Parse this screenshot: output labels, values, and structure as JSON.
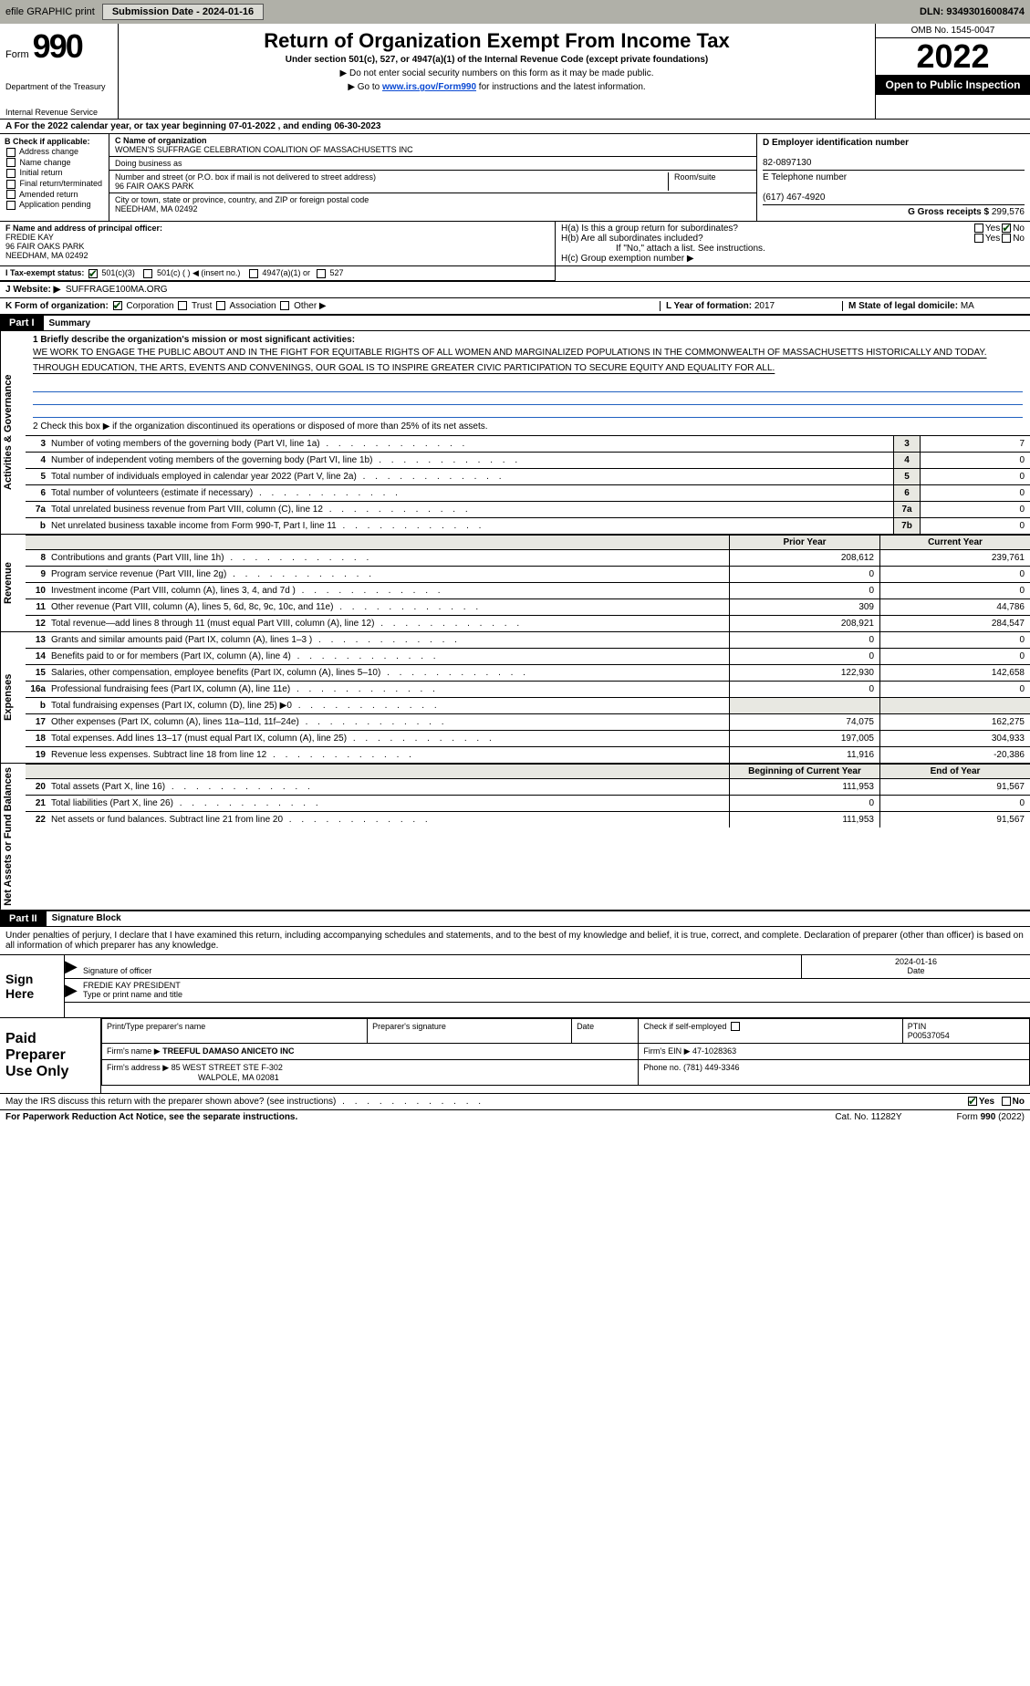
{
  "topbar": {
    "efile": "efile GRAPHIC print",
    "submission": "Submission Date - 2024-01-16",
    "dln": "DLN: 93493016008474"
  },
  "header": {
    "form_word": "Form",
    "form_num": "990",
    "dept": "Department of the Treasury",
    "irs": "Internal Revenue Service",
    "title": "Return of Organization Exempt From Income Tax",
    "sub": "Under section 501(c), 527, or 4947(a)(1) of the Internal Revenue Code (except private foundations)",
    "note1": "▶ Do not enter social security numbers on this form as it may be made public.",
    "note2a": "▶ Go to ",
    "note2link": "www.irs.gov/Form990",
    "note2b": " for instructions and the latest information.",
    "omb": "OMB No. 1545-0047",
    "year": "2022",
    "public": "Open to Public Inspection"
  },
  "svc": "A For the 2022 calendar year, or tax year beginning 07-01-2022    , and ending 06-30-2023",
  "B": {
    "title": "B Check if applicable:",
    "items": [
      "Address change",
      "Name change",
      "Initial return",
      "Final return/terminated",
      "Amended return",
      "Application pending"
    ]
  },
  "C": {
    "name_lab": "C Name of organization",
    "name": "WOMEN'S SUFFRAGE CELEBRATION COALITION OF MASSACHUSETTS INC",
    "dba_lab": "Doing business as",
    "street_lab": "Number and street (or P.O. box if mail is not delivered to street address)",
    "room_lab": "Room/suite",
    "street": "96 FAIR OAKS PARK",
    "city_lab": "City or town, state or province, country, and ZIP or foreign postal code",
    "city": "NEEDHAM, MA  02492"
  },
  "D": {
    "lab": "D Employer identification number",
    "val": "82-0897130",
    "E_lab": "E Telephone number",
    "E_val": "(617) 467-4920",
    "G_lab": "G Gross receipts $",
    "G_val": "299,576"
  },
  "officer": {
    "F_lab": "F Name and address of principal officer:",
    "name": "FREDIE KAY",
    "street": "96 FAIR OAKS PARK",
    "city": "NEEDHAM, MA  02492",
    "Ha": "H(a)  Is this a group return for subordinates?",
    "Hb": "H(b)  Are all subordinates included?",
    "Hnote": "If \"No,\" attach a list. See instructions.",
    "Hc": "H(c)  Group exemption number ▶",
    "yes": "Yes",
    "no": "No"
  },
  "I": {
    "lab": "I    Tax-exempt status:",
    "a": "501(c)(3)",
    "b": "501(c) (  ) ◀ (insert no.)",
    "c": "4947(a)(1) or",
    "d": "527"
  },
  "J": {
    "lab": "J    Website: ▶",
    "val": "SUFFRAGE100MA.ORG"
  },
  "K": {
    "lab": "K Form of organization:",
    "a": "Corporation",
    "b": "Trust",
    "c": "Association",
    "d": "Other ▶",
    "L_lab": "L Year of formation:",
    "L_val": "2017",
    "M_lab": "M State of legal domicile:",
    "M_val": "MA"
  },
  "partI": {
    "num": "Part I",
    "title": "Summary"
  },
  "mission_lab": "1  Briefly describe the organization's mission or most significant activities:",
  "mission": "WE WORK TO ENGAGE THE PUBLIC ABOUT AND IN THE FIGHT FOR EQUITABLE RIGHTS OF ALL WOMEN AND MARGINALIZED POPULATIONS IN THE COMMONWEALTH OF MASSACHUSETTS HISTORICALLY AND TODAY. THROUGH EDUCATION, THE ARTS, EVENTS AND CONVENINGS, OUR GOAL IS TO INSPIRE GREATER CIVIC PARTICIPATION TO SECURE EQUITY AND EQUALITY FOR ALL.",
  "line2": "2    Check this box ▶     if the organization discontinued its operations or disposed of more than 25% of its net assets.",
  "gov_rows": [
    {
      "n": "3",
      "d": "Number of voting members of the governing body (Part VI, line 1a)",
      "b": "3",
      "v": "7"
    },
    {
      "n": "4",
      "d": "Number of independent voting members of the governing body (Part VI, line 1b)",
      "b": "4",
      "v": "0"
    },
    {
      "n": "5",
      "d": "Total number of individuals employed in calendar year 2022 (Part V, line 2a)",
      "b": "5",
      "v": "0"
    },
    {
      "n": "6",
      "d": "Total number of volunteers (estimate if necessary)",
      "b": "6",
      "v": "0"
    },
    {
      "n": "7a",
      "d": "Total unrelated business revenue from Part VIII, column (C), line 12",
      "b": "7a",
      "v": "0"
    },
    {
      "n": "b",
      "d": "Net unrelated business taxable income from Form 990-T, Part I, line 11",
      "b": "7b",
      "v": "0"
    }
  ],
  "vlabels": {
    "gov": "Activities & Governance",
    "rev": "Revenue",
    "exp": "Expenses",
    "net": "Net Assets or Fund Balances"
  },
  "finhead": {
    "h1": "Prior Year",
    "h2": "Current Year"
  },
  "revenue": [
    {
      "n": "8",
      "d": "Contributions and grants (Part VIII, line 1h)",
      "c1": "208,612",
      "c2": "239,761"
    },
    {
      "n": "9",
      "d": "Program service revenue (Part VIII, line 2g)",
      "c1": "0",
      "c2": "0"
    },
    {
      "n": "10",
      "d": "Investment income (Part VIII, column (A), lines 3, 4, and 7d )",
      "c1": "0",
      "c2": "0"
    },
    {
      "n": "11",
      "d": "Other revenue (Part VIII, column (A), lines 5, 6d, 8c, 9c, 10c, and 11e)",
      "c1": "309",
      "c2": "44,786"
    },
    {
      "n": "12",
      "d": "Total revenue—add lines 8 through 11 (must equal Part VIII, column (A), line 12)",
      "c1": "208,921",
      "c2": "284,547"
    }
  ],
  "expenses": [
    {
      "n": "13",
      "d": "Grants and similar amounts paid (Part IX, column (A), lines 1–3 )",
      "c1": "0",
      "c2": "0"
    },
    {
      "n": "14",
      "d": "Benefits paid to or for members (Part IX, column (A), line 4)",
      "c1": "0",
      "c2": "0"
    },
    {
      "n": "15",
      "d": "Salaries, other compensation, employee benefits (Part IX, column (A), lines 5–10)",
      "c1": "122,930",
      "c2": "142,658"
    },
    {
      "n": "16a",
      "d": "Professional fundraising fees (Part IX, column (A), line 11e)",
      "c1": "0",
      "c2": "0"
    },
    {
      "n": "b",
      "d": "Total fundraising expenses (Part IX, column (D), line 25) ▶0",
      "c1": "",
      "c2": "",
      "shade": true
    },
    {
      "n": "17",
      "d": "Other expenses (Part IX, column (A), lines 11a–11d, 11f–24e)",
      "c1": "74,075",
      "c2": "162,275"
    },
    {
      "n": "18",
      "d": "Total expenses. Add lines 13–17 (must equal Part IX, column (A), line 25)",
      "c1": "197,005",
      "c2": "304,933"
    },
    {
      "n": "19",
      "d": "Revenue less expenses. Subtract line 18 from line 12",
      "c1": "11,916",
      "c2": "-20,386"
    }
  ],
  "nethead": {
    "h1": "Beginning of Current Year",
    "h2": "End of Year"
  },
  "net": [
    {
      "n": "20",
      "d": "Total assets (Part X, line 16)",
      "c1": "111,953",
      "c2": "91,567"
    },
    {
      "n": "21",
      "d": "Total liabilities (Part X, line 26)",
      "c1": "0",
      "c2": "0"
    },
    {
      "n": "22",
      "d": "Net assets or fund balances. Subtract line 21 from line 20",
      "c1": "111,953",
      "c2": "91,567"
    }
  ],
  "partII": {
    "num": "Part II",
    "title": "Signature Block"
  },
  "sig_text": "Under penalties of perjury, I declare that I have examined this return, including accompanying schedules and statements, and to the best of my knowledge and belief, it is true, correct, and complete. Declaration of preparer (other than officer) is based on all information of which preparer has any knowledge.",
  "sign": {
    "here": "Sign Here",
    "sig_lab": "Signature of officer",
    "date_lab": "Date",
    "date": "2024-01-16",
    "name": "FREDIE KAY  PRESIDENT",
    "name_lab": "Type or print name and title"
  },
  "paid": {
    "label": "Paid Preparer Use Only",
    "h1": "Print/Type preparer's name",
    "h2": "Preparer's signature",
    "h3": "Date",
    "h4": "Check      if self-employed",
    "h5": "PTIN",
    "ptin": "P00537054",
    "firm_lab": "Firm's name    ▶",
    "firm": "TREEFUL DAMASO ANICETO INC",
    "ein_lab": "Firm's EIN ▶",
    "ein": "47-1028363",
    "addr_lab": "Firm's address ▶",
    "addr1": "85 WEST STREET STE F-302",
    "addr2": "WALPOLE, MA  02081",
    "phone_lab": "Phone no.",
    "phone": "(781) 449-3346"
  },
  "discuss": "May the IRS discuss this return with the preparer shown above? (see instructions)",
  "footer": {
    "left": "For Paperwork Reduction Act Notice, see the separate instructions.",
    "cat": "Cat. No. 11282Y",
    "form": "Form 990 (2022)"
  }
}
